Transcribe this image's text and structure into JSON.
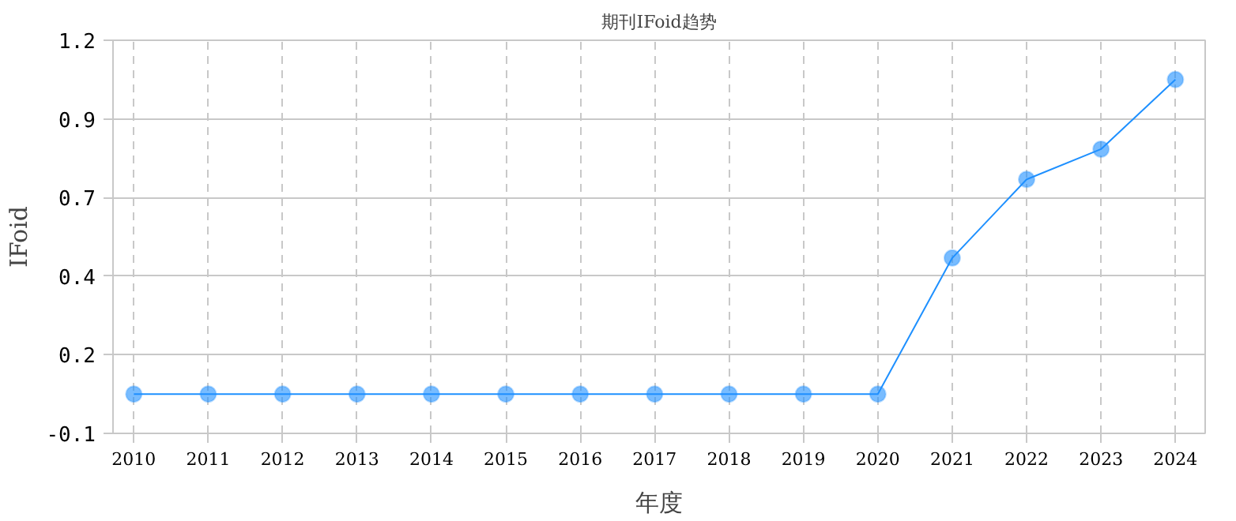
{
  "chart_data": {
    "type": "line",
    "title": "期刊IFoid趋势",
    "xlabel": "年度",
    "ylabel": "IFoid",
    "categories": [
      "2010",
      "2011",
      "2012",
      "2013",
      "2014",
      "2015",
      "2016",
      "2017",
      "2018",
      "2019",
      "2020",
      "2021",
      "2022",
      "2023",
      "2024"
    ],
    "series": [
      {
        "color": "#1e90ff",
        "values": [
          0.03,
          0.03,
          0.03,
          0.03,
          0.03,
          0.03,
          0.03,
          0.03,
          0.03,
          0.03,
          0.03,
          0.48,
          0.74,
          0.84,
          1.07
        ]
      }
    ],
    "ylim": [
      -0.1,
      1.2
    ],
    "yticks": [
      -0.1,
      {
        "value": 0.16,
        "label": "0.2"
      },
      {
        "value": 0.42,
        "label": "0.4"
      },
      {
        "value": 0.68,
        "label": "0.7"
      },
      {
        "value": 0.94,
        "label": "0.9"
      },
      1.2
    ],
    "grid": true,
    "marker": "circle",
    "line_style": "solid"
  }
}
